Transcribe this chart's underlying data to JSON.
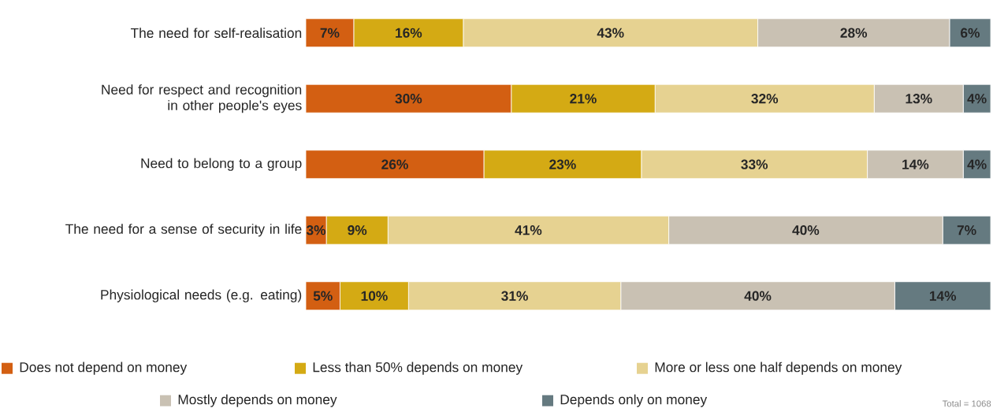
{
  "chart_data": {
    "type": "bar",
    "orientation": "horizontal",
    "stacked": true,
    "legend": "bottom",
    "categories": [
      "The need for self-realisation",
      "Need for respect and recognition in other people's eyes",
      "Need to belong to a group",
      "The need for a sense of security in life",
      "Physiological needs (e.g. eating)"
    ],
    "series": [
      {
        "name": "Does not depend on money",
        "color": "#d35f12",
        "values": [
          7,
          30,
          26,
          3,
          5
        ],
        "value_labels": [
          "7%",
          "30%",
          "26%",
          "3%",
          "5%"
        ]
      },
      {
        "name": "Less than 50% depends on money",
        "color": "#d4aa14",
        "values": [
          16,
          21,
          23,
          9,
          10
        ],
        "value_labels": [
          "16%",
          "21%",
          "23%",
          "9%",
          "10%"
        ]
      },
      {
        "name": "More or less one half depends on money",
        "color": "#e6d291",
        "values": [
          43,
          32,
          33,
          41,
          31
        ],
        "value_labels": [
          "43%",
          "32%",
          "33%",
          "41%",
          "31%"
        ]
      },
      {
        "name": "Mostly depends on money",
        "color": "#c9c1b3",
        "values": [
          28,
          13,
          14,
          40,
          40
        ],
        "value_labels": [
          "28%",
          "13%",
          "14%",
          "40%",
          "40%"
        ]
      },
      {
        "name": "Depends only on money",
        "color": "#657a80",
        "values": [
          6,
          4,
          4,
          7,
          14
        ],
        "value_labels": [
          "6%",
          "4%",
          "4%",
          "7%",
          "14%"
        ]
      }
    ],
    "annotations": [
      "Total = 1068"
    ]
  }
}
